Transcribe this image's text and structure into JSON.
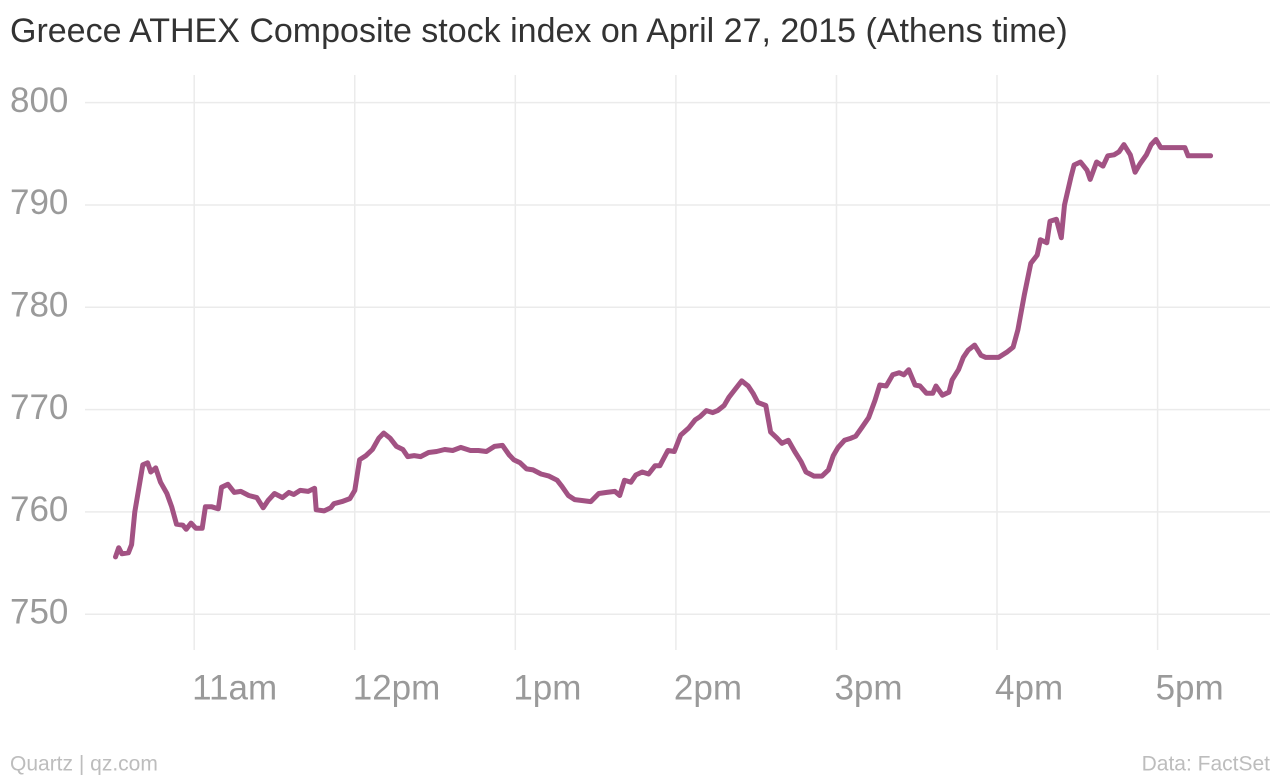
{
  "chart_data": {
    "type": "line",
    "title": "Greece ATHEX Composite stock index on April 27, 2015 (Athens time)",
    "credit": "Quartz | qz.com",
    "source": "Data: FactSet",
    "x": [
      10.51,
      10.53,
      10.55,
      10.59,
      10.61,
      10.63,
      10.68,
      10.71,
      10.73,
      10.76,
      10.79,
      10.83,
      10.86,
      10.89,
      10.93,
      10.95,
      10.98,
      11.01,
      11.05,
      11.07,
      11.11,
      11.15,
      11.17,
      11.21,
      11.25,
      11.29,
      11.34,
      11.39,
      11.43,
      11.46,
      11.5,
      11.55,
      11.59,
      11.62,
      11.66,
      11.71,
      11.75,
      11.76,
      11.81,
      11.85,
      11.87,
      11.92,
      11.97,
      12.0,
      12.03,
      12.07,
      12.11,
      12.15,
      12.18,
      12.22,
      12.26,
      12.3,
      12.33,
      12.37,
      12.41,
      12.46,
      12.51,
      12.56,
      12.61,
      12.66,
      12.72,
      12.77,
      12.82,
      12.87,
      12.92,
      12.96,
      12.99,
      13.03,
      13.07,
      13.11,
      13.16,
      13.21,
      13.26,
      13.29,
      13.33,
      13.37,
      13.42,
      13.47,
      13.52,
      13.57,
      13.62,
      13.65,
      13.68,
      13.72,
      13.75,
      13.79,
      13.83,
      13.87,
      13.9,
      13.95,
      13.99,
      14.03,
      14.08,
      14.12,
      14.15,
      14.19,
      14.23,
      14.26,
      14.3,
      14.33,
      14.36,
      14.41,
      14.45,
      14.48,
      14.51,
      14.56,
      14.59,
      14.63,
      14.66,
      14.7,
      14.74,
      14.78,
      14.81,
      14.86,
      14.91,
      14.95,
      14.98,
      15.01,
      15.05,
      15.09,
      15.12,
      15.16,
      15.2,
      15.24,
      15.27,
      15.31,
      15.35,
      15.39,
      15.42,
      15.45,
      15.49,
      15.52,
      15.56,
      15.6,
      15.62,
      15.66,
      15.7,
      15.72,
      15.76,
      15.79,
      15.82,
      15.86,
      15.9,
      15.93,
      15.97,
      16.01,
      16.06,
      16.1,
      16.13,
      16.17,
      16.21,
      16.25,
      16.27,
      16.31,
      16.33,
      16.37,
      16.4,
      16.42,
      16.46,
      16.48,
      16.52,
      16.56,
      16.58,
      16.62,
      16.66,
      16.69,
      16.73,
      16.76,
      16.79,
      16.83,
      16.86,
      16.89,
      16.93,
      16.96,
      16.99,
      17.02,
      17.08,
      17.17,
      17.19,
      17.33
    ],
    "series": [
      {
        "color": "#a25283",
        "values": [
          755.6,
          756.5,
          755.9,
          756,
          756.8,
          760,
          764.6,
          764.8,
          763.9,
          764.3,
          762.9,
          761.8,
          760.5,
          758.8,
          758.7,
          758.3,
          758.9,
          758.4,
          758.4,
          760.5,
          760.5,
          760.3,
          762.4,
          762.7,
          761.9,
          762,
          761.6,
          761.4,
          760.4,
          761.1,
          761.8,
          761.4,
          761.9,
          761.7,
          762.1,
          762,
          762.3,
          760.2,
          760.1,
          760.4,
          760.8,
          761,
          761.3,
          762.1,
          765.1,
          765.5,
          766.1,
          767.2,
          767.7,
          767.2,
          766.4,
          766.1,
          765.4,
          765.5,
          765.4,
          765.8,
          765.9,
          766.1,
          766,
          766.3,
          766,
          766,
          765.9,
          766.4,
          766.5,
          765.6,
          765.1,
          764.8,
          764.2,
          764.1,
          763.7,
          763.5,
          763.1,
          762.5,
          761.6,
          761.2,
          761.1,
          761,
          761.8,
          761.9,
          762,
          761.6,
          763.1,
          762.9,
          763.6,
          763.9,
          763.7,
          764.5,
          764.5,
          766,
          765.9,
          767.5,
          768.2,
          769,
          769.3,
          769.9,
          769.7,
          769.9,
          770.4,
          771.2,
          771.8,
          772.8,
          772.3,
          771.6,
          770.7,
          770.4,
          767.8,
          767.2,
          766.7,
          767,
          765.9,
          764.9,
          763.9,
          763.5,
          763.5,
          764.1,
          765.5,
          766.3,
          767,
          767.2,
          767.4,
          768.3,
          769.2,
          770.9,
          772.4,
          772.3,
          773.4,
          773.6,
          773.4,
          773.9,
          772.4,
          772.3,
          771.6,
          771.6,
          772.3,
          771.4,
          771.7,
          772.9,
          773.9,
          775.1,
          775.8,
          776.3,
          775.3,
          775.1,
          775.1,
          775.1,
          775.6,
          776.1,
          777.8,
          781.2,
          784.3,
          785.1,
          786.6,
          786.3,
          788.4,
          788.6,
          786.8,
          790,
          792.7,
          793.9,
          794.2,
          793.4,
          792.5,
          794.2,
          793.8,
          794.8,
          794.9,
          795.2,
          795.9,
          794.9,
          793.2,
          794,
          794.9,
          795.9,
          796.4,
          795.6,
          795.6,
          795.6,
          794.8,
          794.8
        ]
      }
    ],
    "xlim": [
      10.32,
      17.7
    ],
    "xticks": [
      {
        "value": 11,
        "label": "11am"
      },
      {
        "value": 12,
        "label": "12pm"
      },
      {
        "value": 13,
        "label": "1pm"
      },
      {
        "value": 14,
        "label": "2pm"
      },
      {
        "value": 15,
        "label": "3pm"
      },
      {
        "value": 16,
        "label": "4pm"
      },
      {
        "value": 17,
        "label": "5pm"
      }
    ],
    "ylim": [
      746.5,
      802.7
    ],
    "yticks": [
      750,
      760,
      770,
      780,
      790,
      800
    ],
    "grid": true
  }
}
